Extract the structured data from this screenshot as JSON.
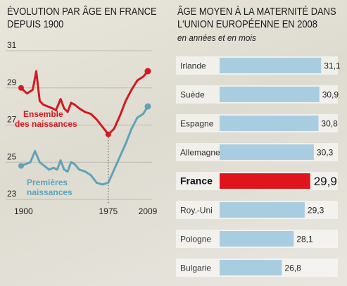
{
  "left_chart": {
    "title_line1": "ÉVOLUTION PAR ÂGE EN FRANCE",
    "title_line2": "DEPUIS 1900"
  },
  "right_chart": {
    "title_line1": "ÂGE MOYEN À LA MATERNITÉ DANS",
    "title_line2": "L'UNION EUROPÉENNE EN 2008",
    "subtitle": "en années et en mois"
  },
  "colors": {
    "red": "#d11a22",
    "blue": "#5fa3b8",
    "bar": "#a9cde0",
    "highlight": "#e0141c"
  },
  "chart_data": [
    {
      "type": "line",
      "title": "ÉVOLUTION PAR ÂGE EN FRANCE DEPUIS 1900",
      "x_ticks": [
        "1900",
        "1975",
        "2009"
      ],
      "y_ticks": [
        23,
        25,
        27,
        29,
        31
      ],
      "ylim": [
        23,
        31
      ],
      "xlim": [
        1900,
        2009
      ],
      "grid": true,
      "series": [
        {
          "name": "Ensemble des naissances",
          "color": "#d11a22",
          "points": [
            [
              1900,
              29.0
            ],
            [
              1905,
              28.7
            ],
            [
              1910,
              28.9
            ],
            [
              1913,
              29.9
            ],
            [
              1916,
              28.3
            ],
            [
              1919,
              28.1
            ],
            [
              1923,
              28.0
            ],
            [
              1927,
              27.9
            ],
            [
              1930,
              27.8
            ],
            [
              1934,
              28.4
            ],
            [
              1937,
              27.9
            ],
            [
              1940,
              27.7
            ],
            [
              1943,
              28.2
            ],
            [
              1946,
              28.1
            ],
            [
              1950,
              27.9
            ],
            [
              1955,
              27.7
            ],
            [
              1960,
              27.6
            ],
            [
              1965,
              27.3
            ],
            [
              1970,
              26.9
            ],
            [
              1975,
              26.5
            ],
            [
              1980,
              26.8
            ],
            [
              1985,
              27.5
            ],
            [
              1990,
              28.3
            ],
            [
              1995,
              28.9
            ],
            [
              2000,
              29.4
            ],
            [
              2005,
              29.6
            ],
            [
              2009,
              29.9
            ]
          ]
        },
        {
          "name": "Premières naissances",
          "color": "#5fa3b8",
          "points": [
            [
              1900,
              24.8
            ],
            [
              1904,
              24.9
            ],
            [
              1908,
              25.0
            ],
            [
              1912,
              25.6
            ],
            [
              1916,
              25.0
            ],
            [
              1920,
              24.8
            ],
            [
              1924,
              24.6
            ],
            [
              1928,
              24.7
            ],
            [
              1931,
              24.6
            ],
            [
              1934,
              25.1
            ],
            [
              1937,
              24.6
            ],
            [
              1940,
              24.5
            ],
            [
              1943,
              25.0
            ],
            [
              1946,
              24.9
            ],
            [
              1950,
              24.6
            ],
            [
              1955,
              24.5
            ],
            [
              1960,
              24.3
            ],
            [
              1965,
              23.9
            ],
            [
              1970,
              23.8
            ],
            [
              1975,
              23.9
            ],
            [
              1980,
              24.6
            ],
            [
              1985,
              25.3
            ],
            [
              1990,
              26.0
            ],
            [
              1995,
              26.8
            ],
            [
              2000,
              27.4
            ],
            [
              2005,
              27.6
            ],
            [
              2009,
              28.0
            ]
          ]
        }
      ],
      "annotations": [
        {
          "text": "Ensemble des naissances",
          "series": "Ensemble des naissances"
        },
        {
          "text": "Premières naissances",
          "series": "Premières naissances"
        }
      ],
      "reference_line": {
        "x": 1975,
        "style": "dotted"
      }
    },
    {
      "type": "bar",
      "title": "ÂGE MOYEN À LA MATERNITÉ DANS L'UNION EUROPÉENNE EN 2008",
      "subtitle": "en années et en mois",
      "orientation": "horizontal",
      "xlim": [
        20,
        32
      ],
      "categories": [
        "Irlande",
        "Suède",
        "Espagne",
        "Allemagne",
        "France",
        "Roy.-Uni",
        "Pologne",
        "Bulgarie"
      ],
      "labels": [
        "31,1",
        "30,9",
        "30,8",
        "30,3",
        "29,9",
        "29,3",
        "28,1",
        "26,8"
      ],
      "values": [
        31.1,
        30.9,
        30.8,
        30.3,
        29.9,
        29.3,
        28.1,
        26.8
      ],
      "highlight": "France"
    }
  ]
}
